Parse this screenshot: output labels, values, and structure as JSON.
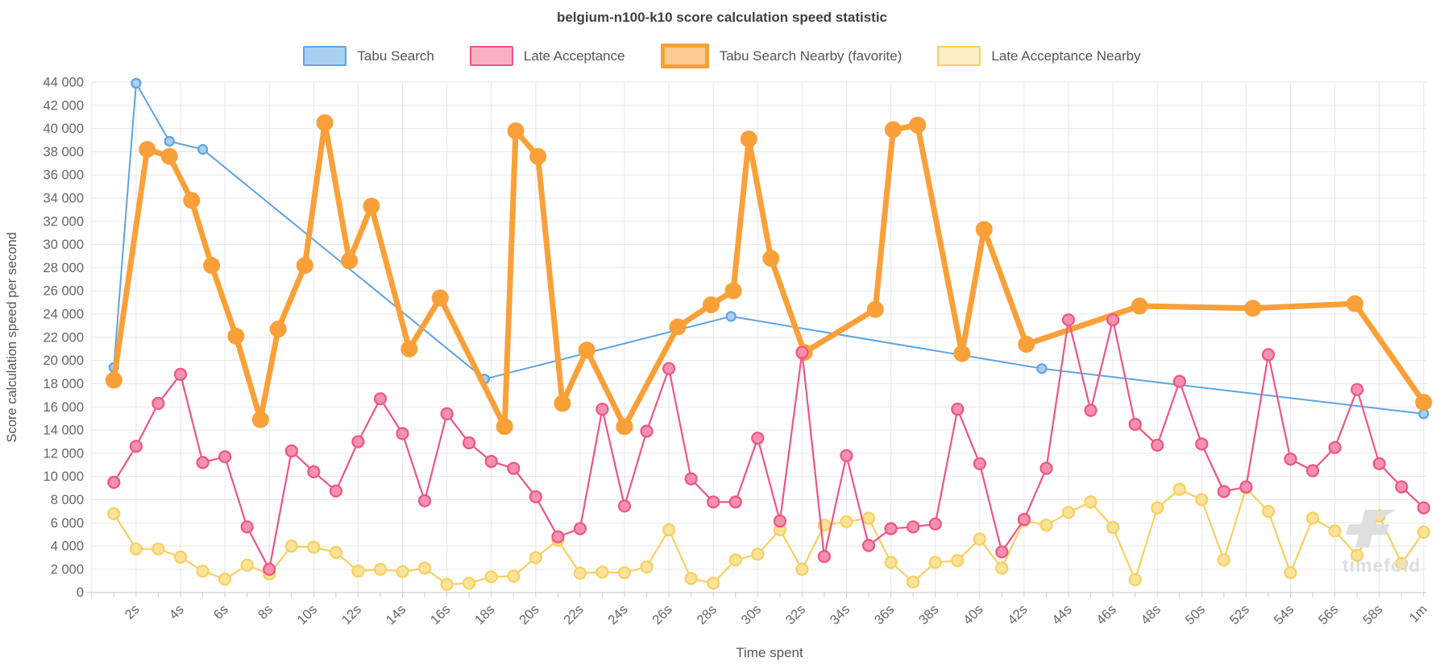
{
  "title": "belgium-n100-k10 score calculation speed statistic",
  "watermark": {
    "text": "timefold"
  },
  "axes": {
    "y_title": "Score calculation speed per second",
    "x_title": "Time spent",
    "y_min": 0,
    "y_max": 44000,
    "y_step": 2000,
    "y_tick_labels": [
      "0",
      "2 000",
      "4 000",
      "6 000",
      "8 000",
      "10 000",
      "12 000",
      "14 000",
      "16 000",
      "18 000",
      "20 000",
      "22 000",
      "24 000",
      "26 000",
      "28 000",
      "30 000",
      "32 000",
      "34 000",
      "36 000",
      "38 000",
      "40 000",
      "42 000",
      "44 000"
    ],
    "x_ticks": [
      {
        "t": 2,
        "label": "2s"
      },
      {
        "t": 4,
        "label": "4s"
      },
      {
        "t": 6,
        "label": "6s"
      },
      {
        "t": 8,
        "label": "8s"
      },
      {
        "t": 10,
        "label": "10s"
      },
      {
        "t": 12,
        "label": "12s"
      },
      {
        "t": 14,
        "label": "14s"
      },
      {
        "t": 16,
        "label": "16s"
      },
      {
        "t": 18,
        "label": "18s"
      },
      {
        "t": 20,
        "label": "20s"
      },
      {
        "t": 22,
        "label": "22s"
      },
      {
        "t": 24,
        "label": "24s"
      },
      {
        "t": 26,
        "label": "26s"
      },
      {
        "t": 28,
        "label": "28s"
      },
      {
        "t": 30,
        "label": "30s"
      },
      {
        "t": 32,
        "label": "32s"
      },
      {
        "t": 34,
        "label": "34s"
      },
      {
        "t": 36,
        "label": "36s"
      },
      {
        "t": 38,
        "label": "38s"
      },
      {
        "t": 40,
        "label": "40s"
      },
      {
        "t": 42,
        "label": "42s"
      },
      {
        "t": 44,
        "label": "44s"
      },
      {
        "t": 46,
        "label": "46s"
      },
      {
        "t": 48,
        "label": "48s"
      },
      {
        "t": 50,
        "label": "50s"
      },
      {
        "t": 52,
        "label": "52s"
      },
      {
        "t": 54,
        "label": "54s"
      },
      {
        "t": 56,
        "label": "56s"
      },
      {
        "t": 58,
        "label": "58s"
      },
      {
        "t": 60,
        "label": "1m"
      }
    ],
    "x_minor_tick_seconds": 1,
    "grid_color": "#e7e7e7",
    "axis_line_color": "#cccccc",
    "tick_text_color": "#666666",
    "axis_title_color": "#555555"
  },
  "legend_items": [
    {
      "label": "Tabu Search",
      "fill": "#a9d0f3",
      "border": "#5fa4e2",
      "thick": false
    },
    {
      "label": "Late Acceptance",
      "fill": "#f9b0c3",
      "border": "#ee5585",
      "thick": false
    },
    {
      "label": "Tabu Search Nearby (favorite)",
      "fill": "#fbca8e",
      "border": "#faa039",
      "thick": true
    },
    {
      "label": "Late Acceptance Nearby",
      "fill": "#fdefc3",
      "border": "#f8cf60",
      "thick": false
    }
  ],
  "chart_data": {
    "type": "line",
    "title": "belgium-n100-k10 score calculation speed statistic",
    "xlabel": "Time spent",
    "ylabel": "Score calculation speed per second",
    "x_unit": "seconds",
    "xlim": [
      0,
      61
    ],
    "ylim": [
      0,
      44000
    ],
    "grid": true,
    "legend_position": "top",
    "series": [
      {
        "name": "Tabu Search",
        "color": "#5fa4e2",
        "marker_fill": "#a9cff2",
        "thick": false,
        "points": [
          [
            1,
            19400
          ],
          [
            2,
            43900
          ],
          [
            3.5,
            38900
          ],
          [
            5,
            38200
          ],
          [
            17.7,
            18400
          ],
          [
            28.8,
            23800
          ],
          [
            42.8,
            19300
          ],
          [
            60,
            15400
          ]
        ]
      },
      {
        "name": "Late Acceptance",
        "color": "#ee5585",
        "marker_fill": "#f591ae",
        "thick": false,
        "points": [
          [
            1,
            9500
          ],
          [
            2,
            12600
          ],
          [
            3,
            16300
          ],
          [
            4,
            18800
          ],
          [
            5,
            11200
          ],
          [
            6,
            11700
          ],
          [
            7,
            5650
          ],
          [
            8,
            2000
          ],
          [
            9,
            12200
          ],
          [
            10,
            10400
          ],
          [
            11,
            8750
          ],
          [
            12,
            13000
          ],
          [
            13,
            16700
          ],
          [
            14,
            13700
          ],
          [
            15,
            7900
          ],
          [
            16,
            15400
          ],
          [
            17,
            12900
          ],
          [
            18,
            11300
          ],
          [
            19,
            10700
          ],
          [
            20,
            8250
          ],
          [
            21,
            4800
          ],
          [
            22,
            5500
          ],
          [
            23,
            15800
          ],
          [
            24,
            7450
          ],
          [
            25,
            13900
          ],
          [
            26,
            19300
          ],
          [
            27,
            9800
          ],
          [
            28,
            7800
          ],
          [
            29,
            7800
          ],
          [
            30,
            13300
          ],
          [
            31,
            6150
          ],
          [
            32,
            20700
          ],
          [
            33,
            3100
          ],
          [
            34,
            11800
          ],
          [
            35,
            4050
          ],
          [
            36,
            5500
          ],
          [
            37,
            5650
          ],
          [
            38,
            5900
          ],
          [
            39,
            15800
          ],
          [
            40,
            11100
          ],
          [
            41,
            3500
          ],
          [
            42,
            6300
          ],
          [
            43,
            10700
          ],
          [
            44,
            23500
          ],
          [
            45,
            15700
          ],
          [
            46,
            23500
          ],
          [
            47,
            14500
          ],
          [
            48,
            12700
          ],
          [
            49,
            18200
          ],
          [
            50,
            12800
          ],
          [
            51,
            8700
          ],
          [
            52,
            9100
          ],
          [
            53,
            20500
          ],
          [
            54,
            11500
          ],
          [
            55,
            10500
          ],
          [
            56,
            12500
          ],
          [
            57,
            17500
          ],
          [
            58,
            11100
          ],
          [
            59,
            9100
          ],
          [
            60,
            7300
          ]
        ]
      },
      {
        "name": "Tabu Search Nearby (favorite)",
        "color": "#faa039",
        "marker_fill": "#faa039",
        "thick": true,
        "points": [
          [
            1,
            18300
          ],
          [
            2.5,
            38200
          ],
          [
            3.5,
            37600
          ],
          [
            4.5,
            33800
          ],
          [
            5.4,
            28200
          ],
          [
            6.5,
            22100
          ],
          [
            7.6,
            14900
          ],
          [
            8.4,
            22700
          ],
          [
            9.6,
            28200
          ],
          [
            10.5,
            40500
          ],
          [
            11.6,
            28600
          ],
          [
            12.6,
            33300
          ],
          [
            14.3,
            21000
          ],
          [
            15.7,
            25400
          ],
          [
            18.6,
            14300
          ],
          [
            19.1,
            39800
          ],
          [
            20.1,
            37600
          ],
          [
            21.2,
            16300
          ],
          [
            22.3,
            20900
          ],
          [
            24,
            14300
          ],
          [
            26.4,
            22900
          ],
          [
            27.9,
            24800
          ],
          [
            28.9,
            26000
          ],
          [
            29.6,
            39100
          ],
          [
            30.6,
            28800
          ],
          [
            32.1,
            20700
          ],
          [
            35.3,
            24400
          ],
          [
            36.1,
            39900
          ],
          [
            37.2,
            40300
          ],
          [
            39.2,
            20600
          ],
          [
            40.2,
            31300
          ],
          [
            42.1,
            21400
          ],
          [
            47.2,
            24700
          ],
          [
            52.3,
            24500
          ],
          [
            56.9,
            24900
          ],
          [
            60,
            16400
          ]
        ]
      },
      {
        "name": "Late Acceptance Nearby",
        "color": "#f8cf60",
        "marker_fill": "#fbe399",
        "thick": false,
        "points": [
          [
            1,
            6800
          ],
          [
            2,
            3750
          ],
          [
            3,
            3750
          ],
          [
            4,
            3050
          ],
          [
            5,
            1830
          ],
          [
            6,
            1150
          ],
          [
            7,
            2350
          ],
          [
            8,
            1600
          ],
          [
            9,
            4000
          ],
          [
            10,
            3900
          ],
          [
            11,
            3450
          ],
          [
            12,
            1850
          ],
          [
            13,
            2000
          ],
          [
            14,
            1800
          ],
          [
            15,
            2100
          ],
          [
            16,
            700
          ],
          [
            17,
            800
          ],
          [
            18,
            1350
          ],
          [
            19,
            1400
          ],
          [
            20,
            3000
          ],
          [
            21,
            4500
          ],
          [
            22,
            1650
          ],
          [
            23,
            1750
          ],
          [
            24,
            1700
          ],
          [
            25,
            2200
          ],
          [
            26,
            5400
          ],
          [
            27,
            1200
          ],
          [
            28,
            800
          ],
          [
            29,
            2800
          ],
          [
            30,
            3300
          ],
          [
            31,
            5400
          ],
          [
            32,
            2000
          ],
          [
            33,
            5800
          ],
          [
            34,
            6100
          ],
          [
            35,
            6400
          ],
          [
            36,
            2600
          ],
          [
            37,
            900
          ],
          [
            38,
            2600
          ],
          [
            39,
            2750
          ],
          [
            40,
            4600
          ],
          [
            41,
            2100
          ],
          [
            42,
            6200
          ],
          [
            43,
            5800
          ],
          [
            44,
            6900
          ],
          [
            45,
            7800
          ],
          [
            46,
            5600
          ],
          [
            47,
            1100
          ],
          [
            48,
            7300
          ],
          [
            49,
            8900
          ],
          [
            50,
            8000
          ],
          [
            51,
            2800
          ],
          [
            52,
            9000
          ],
          [
            53,
            7000
          ],
          [
            54,
            1700
          ],
          [
            55,
            6400
          ],
          [
            56,
            5300
          ],
          [
            57,
            3200
          ],
          [
            58,
            6600
          ],
          [
            59,
            2500
          ],
          [
            60,
            5200
          ]
        ]
      }
    ]
  }
}
